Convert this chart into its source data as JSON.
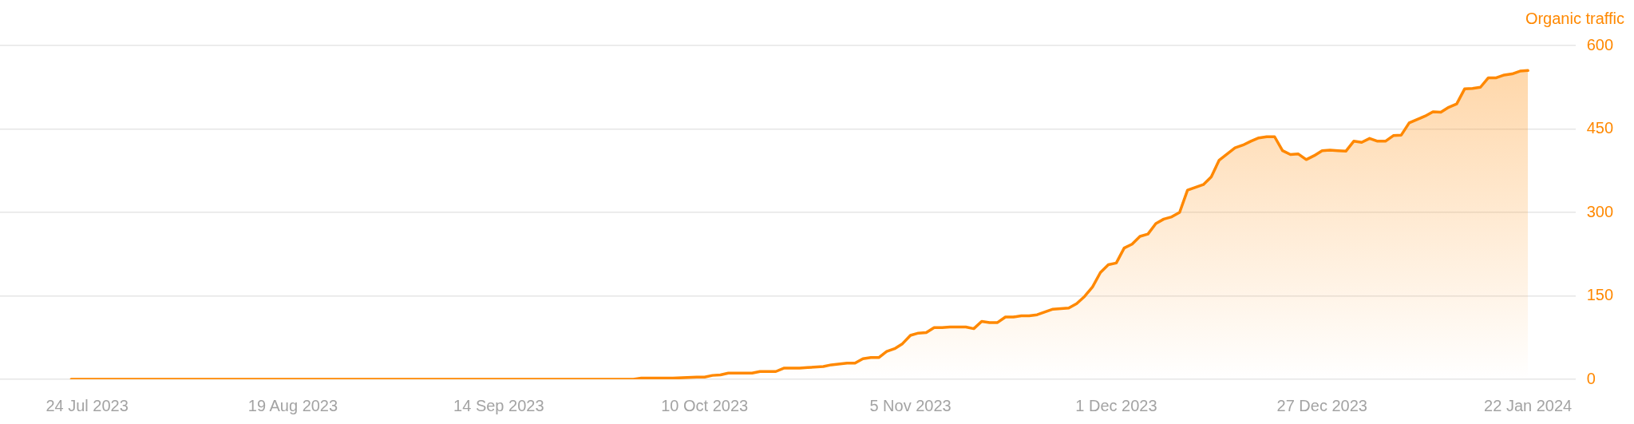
{
  "chart_data": {
    "type": "area",
    "ylabel": "Organic traffic",
    "color": "#ff8800",
    "grid": "y",
    "x": [
      "2023-07-22",
      "2023-10-01",
      "2023-10-02",
      "2023-10-06",
      "2023-10-09",
      "2023-10-10",
      "2023-10-11",
      "2023-10-12",
      "2023-10-13",
      "2023-10-16",
      "2023-10-17",
      "2023-10-19",
      "2023-10-20",
      "2023-10-22",
      "2023-10-23",
      "2023-10-25",
      "2023-10-26",
      "2023-10-28",
      "2023-10-29",
      "2023-10-30",
      "2023-10-31",
      "2023-11-01",
      "2023-11-02",
      "2023-11-03",
      "2023-11-04",
      "2023-11-05",
      "2023-11-06",
      "2023-11-07",
      "2023-11-08",
      "2023-11-09",
      "2023-11-10",
      "2023-11-12",
      "2023-11-13",
      "2023-11-14",
      "2023-11-15",
      "2023-11-16",
      "2023-11-17",
      "2023-11-18",
      "2023-11-19",
      "2023-11-20",
      "2023-11-21",
      "2023-11-22",
      "2023-11-23",
      "2023-11-25",
      "2023-11-26",
      "2023-11-27",
      "2023-11-28",
      "2023-11-29",
      "2023-11-30",
      "2023-12-01",
      "2023-12-02",
      "2023-12-03",
      "2023-12-04",
      "2023-12-05",
      "2023-12-06",
      "2023-12-07",
      "2023-12-08",
      "2023-12-09",
      "2023-12-10",
      "2023-12-11",
      "2023-12-12",
      "2023-12-13",
      "2023-12-14",
      "2023-12-15",
      "2023-12-16",
      "2023-12-17",
      "2023-12-18",
      "2023-12-19",
      "2023-12-20",
      "2023-12-21",
      "2023-12-22",
      "2023-12-23",
      "2023-12-24",
      "2023-12-25",
      "2023-12-26",
      "2023-12-27",
      "2023-12-28",
      "2023-12-29",
      "2023-12-30",
      "2023-12-31",
      "2024-01-01",
      "2024-01-02",
      "2024-01-03",
      "2024-01-04",
      "2024-01-05",
      "2024-01-06",
      "2024-01-07",
      "2024-01-08",
      "2024-01-09",
      "2024-01-10",
      "2024-01-11",
      "2024-01-12",
      "2024-01-13",
      "2024-01-14",
      "2024-01-15",
      "2024-01-16",
      "2024-01-17",
      "2024-01-18",
      "2024-01-19",
      "2024-01-20",
      "2024-01-21",
      "2024-01-22"
    ],
    "values": [
      0,
      0,
      2,
      2,
      4,
      4,
      7,
      8,
      11,
      11,
      14,
      14,
      20,
      20,
      21,
      23,
      26,
      29,
      29,
      37,
      39,
      39,
      50,
      55,
      64,
      79,
      83,
      84,
      93,
      93,
      94,
      94,
      91,
      104,
      102,
      102,
      112,
      112,
      114,
      114,
      116,
      121,
      126,
      128,
      136,
      149,
      166,
      192,
      206,
      209,
      236,
      243,
      257,
      261,
      280,
      288,
      292,
      300,
      340,
      345,
      350,
      364,
      394,
      405,
      416,
      421,
      428,
      434,
      436,
      436,
      411,
      404,
      405,
      395,
      402,
      411,
      412,
      411,
      410,
      428,
      426,
      433,
      428,
      428,
      438,
      439,
      461,
      467,
      473,
      481,
      480,
      489,
      495,
      522,
      523,
      525,
      542,
      542,
      547,
      549,
      554,
      555
    ],
    "xlim": [
      "2023-07-13",
      "2024-01-28"
    ],
    "xticks": [
      {
        "value": "2023-07-24",
        "label": "24 Jul 2023"
      },
      {
        "value": "2023-08-19",
        "label": "19 Aug 2023"
      },
      {
        "value": "2023-09-14",
        "label": "14 Sep 2023"
      },
      {
        "value": "2023-10-10",
        "label": "10 Oct 2023"
      },
      {
        "value": "2023-11-05",
        "label": "5 Nov 2023"
      },
      {
        "value": "2023-12-01",
        "label": "1 Dec 2023"
      },
      {
        "value": "2023-12-27",
        "label": "27 Dec 2023"
      },
      {
        "value": "2024-01-22",
        "label": "22 Jan 2024"
      }
    ],
    "ylim": [
      0,
      600
    ],
    "yticks": [
      0,
      150,
      300,
      450,
      600
    ]
  }
}
